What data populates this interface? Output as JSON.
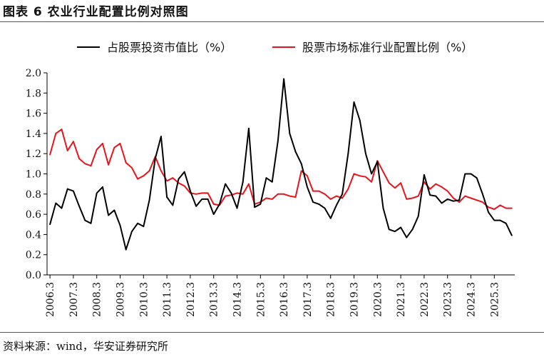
{
  "figure": {
    "title": "图表 6 农业行业配置比例对照图",
    "source": "资料来源：wind，华安证券研究所"
  },
  "chart_data": {
    "type": "line",
    "x": [
      "2006.3",
      "2006.6",
      "2006.9",
      "2006.12",
      "2007.3",
      "2007.6",
      "2007.9",
      "2007.12",
      "2008.3",
      "2008.6",
      "2008.9",
      "2008.12",
      "2009.3",
      "2009.6",
      "2009.9",
      "2009.12",
      "2010.3",
      "2010.6",
      "2010.9",
      "2010.12",
      "2011.3",
      "2011.6",
      "2011.9",
      "2011.12",
      "2012.3",
      "2012.6",
      "2012.9",
      "2012.12",
      "2013.3",
      "2013.6",
      "2013.9",
      "2013.12",
      "2014.3",
      "2014.6",
      "2014.9",
      "2014.12",
      "2015.3",
      "2015.6",
      "2015.9",
      "2015.12",
      "2016.3",
      "2016.6",
      "2016.9",
      "2016.12",
      "2017.3",
      "2017.6",
      "2017.9",
      "2017.12",
      "2018.3",
      "2018.6",
      "2018.9",
      "2018.12",
      "2019.3",
      "2019.6",
      "2019.9",
      "2019.12",
      "2020.3",
      "2020.6",
      "2020.9",
      "2020.12",
      "2021.3",
      "2021.6",
      "2021.9",
      "2021.12",
      "2022.3",
      "2022.6",
      "2022.9",
      "2022.12",
      "2023.3",
      "2023.6",
      "2023.9",
      "2023.12",
      "2024.3",
      "2024.6",
      "2024.9",
      "2024.12",
      "2025.3",
      "2025.6",
      "2025.9",
      "2025.12"
    ],
    "tick_labels": [
      "2006.3",
      "2007.3",
      "2008.3",
      "2009.3",
      "2010.3",
      "2011.3",
      "2012.3",
      "2013.3",
      "2014.3",
      "2015.3",
      "2016.3",
      "2017.3",
      "2018.3",
      "2019.3",
      "2020.3",
      "2021.3",
      "2022.3",
      "2023.3",
      "2024.3",
      "2025.3"
    ],
    "series": [
      {
        "name": "占股票投资市值比（%）",
        "color": "#000000",
        "values": [
          0.5,
          0.71,
          0.66,
          0.85,
          0.83,
          0.68,
          0.54,
          0.51,
          0.81,
          0.87,
          0.59,
          0.64,
          0.49,
          0.25,
          0.43,
          0.51,
          0.48,
          0.74,
          1.15,
          1.37,
          0.77,
          0.69,
          0.95,
          1.02,
          0.83,
          0.68,
          0.75,
          0.75,
          0.6,
          0.7,
          0.9,
          0.81,
          0.66,
          0.92,
          1.45,
          0.67,
          0.7,
          0.96,
          0.92,
          1.33,
          1.94,
          1.4,
          1.22,
          1.1,
          0.87,
          0.72,
          0.7,
          0.66,
          0.56,
          0.69,
          0.8,
          1.2,
          1.71,
          1.53,
          1.2,
          1.0,
          1.12,
          0.66,
          0.45,
          0.43,
          0.47,
          0.37,
          0.45,
          0.58,
          0.99,
          0.79,
          0.78,
          0.71,
          0.75,
          0.73,
          0.74,
          1.0,
          1.0,
          0.96,
          0.8,
          0.62,
          0.54,
          0.54,
          0.51,
          0.39
        ]
      },
      {
        "name": "股票市场标准行业配置比例（%）",
        "color": "#e8141b",
        "values": [
          1.19,
          1.4,
          1.44,
          1.23,
          1.32,
          1.15,
          1.1,
          1.08,
          1.24,
          1.3,
          1.09,
          1.26,
          1.3,
          1.11,
          1.06,
          0.95,
          0.98,
          1.03,
          1.17,
          1.03,
          0.93,
          0.96,
          0.91,
          0.88,
          0.81,
          0.8,
          0.81,
          0.81,
          0.7,
          0.69,
          0.78,
          0.79,
          0.81,
          0.8,
          0.9,
          0.7,
          0.72,
          0.76,
          0.75,
          0.8,
          0.8,
          0.78,
          0.77,
          1.03,
          0.98,
          0.83,
          0.83,
          0.8,
          0.75,
          0.78,
          0.76,
          0.85,
          1.0,
          0.98,
          0.97,
          0.92,
          1.13,
          1.02,
          0.91,
          0.86,
          0.91,
          0.75,
          0.76,
          0.78,
          0.92,
          0.85,
          0.9,
          0.87,
          0.83,
          0.76,
          0.72,
          0.78,
          0.76,
          0.74,
          0.72,
          0.67,
          0.65,
          0.69,
          0.66,
          0.66
        ]
      }
    ],
    "ylim": [
      0,
      2.0
    ],
    "yticks": [
      "0.0",
      "0.2",
      "0.4",
      "0.6",
      "0.8",
      "1.0",
      "1.2",
      "1.4",
      "1.6",
      "1.8",
      "2.0"
    ],
    "grid": false,
    "legend_position": "top"
  }
}
